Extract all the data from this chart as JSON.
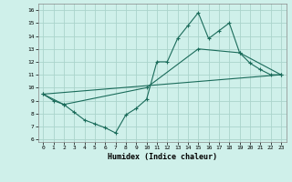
{
  "xlabel": "Humidex (Indice chaleur)",
  "background_color": "#cff0ea",
  "grid_color": "#aad4cc",
  "line_color": "#1a6b5a",
  "xlim": [
    -0.5,
    23.5
  ],
  "ylim": [
    5.8,
    16.5
  ],
  "xticks": [
    0,
    1,
    2,
    3,
    4,
    5,
    6,
    7,
    8,
    9,
    10,
    11,
    12,
    13,
    14,
    15,
    16,
    17,
    18,
    19,
    20,
    21,
    22,
    23
  ],
  "yticks": [
    6,
    7,
    8,
    9,
    10,
    11,
    12,
    13,
    14,
    15,
    16
  ],
  "line1_x": [
    0,
    1,
    2,
    3,
    4,
    5,
    6,
    7,
    8,
    9,
    10,
    11,
    12,
    13,
    14,
    15,
    16,
    17,
    18,
    19,
    20,
    21,
    22,
    23
  ],
  "line1_y": [
    9.5,
    9.0,
    8.7,
    8.1,
    7.5,
    7.2,
    6.9,
    6.5,
    7.9,
    8.4,
    9.1,
    12.0,
    12.0,
    13.8,
    14.8,
    15.8,
    13.8,
    14.4,
    15.0,
    12.7,
    11.9,
    11.4,
    11.0,
    11.0
  ],
  "line2_x": [
    0,
    2,
    10,
    15,
    19,
    23
  ],
  "line2_y": [
    9.5,
    8.7,
    10.0,
    13.0,
    12.7,
    11.0
  ],
  "line3_x": [
    0,
    23
  ],
  "line3_y": [
    9.5,
    11.0
  ]
}
